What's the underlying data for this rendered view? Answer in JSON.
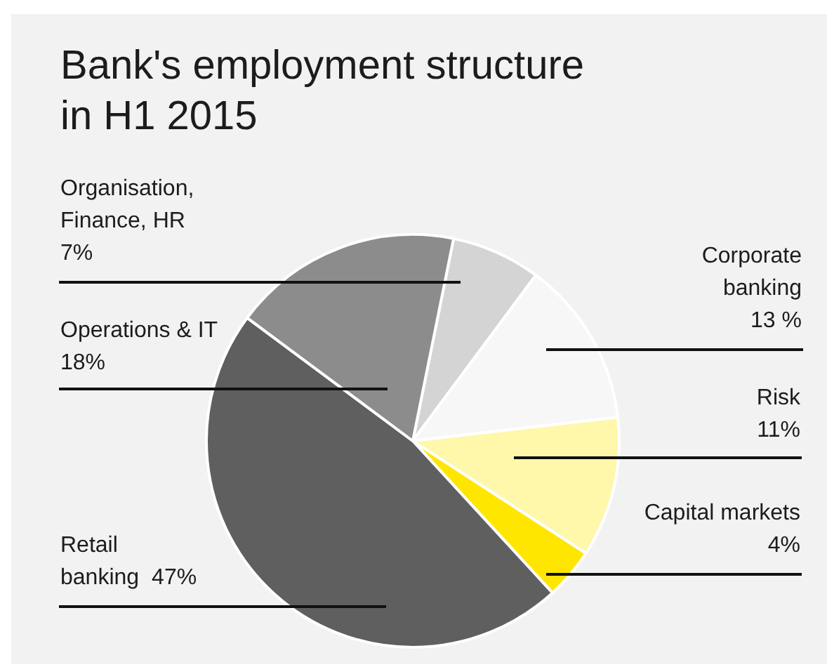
{
  "chart_data": {
    "type": "pie",
    "title": "Bank's employment structure in H1 2015",
    "categories": [
      "Organisation, Finance, HR",
      "Corporate banking",
      "Risk",
      "Capital markets",
      "Retail banking",
      "Operations & IT"
    ],
    "values": [
      7,
      13,
      11,
      4,
      47,
      18
    ],
    "colors": [
      "#d4d4d4",
      "#f7f7f7",
      "#fff7aa",
      "#ffe600",
      "#5f5f5f",
      "#8c8c8c"
    ],
    "value_labels": [
      "7%",
      "13 %",
      "11%",
      "4%",
      "47%",
      "18%"
    ]
  }
}
